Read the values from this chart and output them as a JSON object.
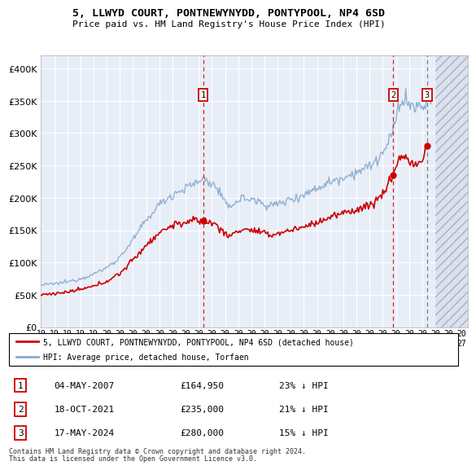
{
  "title1": "5, LLWYD COURT, PONTNEWYNYDD, PONTYPOOL, NP4 6SD",
  "title2": "Price paid vs. HM Land Registry's House Price Index (HPI)",
  "ylim": [
    0,
    420000
  ],
  "yticks": [
    0,
    50000,
    100000,
    150000,
    200000,
    250000,
    300000,
    350000,
    400000
  ],
  "ytick_labels": [
    "£0",
    "£50K",
    "£100K",
    "£150K",
    "£200K",
    "£250K",
    "£300K",
    "£350K",
    "£400K"
  ],
  "sale_dates": [
    "2007-05-04",
    "2021-10-18",
    "2024-05-17"
  ],
  "sale_prices": [
    164950,
    235000,
    280000
  ],
  "sale_labels": [
    "1",
    "2",
    "3"
  ],
  "sale_vline_colors": [
    "#cc0000",
    "#cc0000",
    "#666666"
  ],
  "sale_vline_styles": [
    "--",
    "--",
    "--"
  ],
  "sale_info": [
    {
      "num": "1",
      "date": "04-MAY-2007",
      "price": "£164,950",
      "hpi": "23% ↓ HPI"
    },
    {
      "num": "2",
      "date": "18-OCT-2021",
      "price": "£235,000",
      "hpi": "21% ↓ HPI"
    },
    {
      "num": "3",
      "date": "17-MAY-2024",
      "price": "£280,000",
      "hpi": "15% ↓ HPI"
    }
  ],
  "legend_line1": "5, LLWYD COURT, PONTNEWYNYDD, PONTYPOOL, NP4 6SD (detached house)",
  "legend_line2": "HPI: Average price, detached house, Torfaen",
  "footer1": "Contains HM Land Registry data © Crown copyright and database right 2024.",
  "footer2": "This data is licensed under the Open Government Licence v3.0.",
  "red_color": "#cc0000",
  "blue_color": "#88aacc",
  "bg_plot": "#e8eef8",
  "grid_color": "#ffffff",
  "hatch_start_year": 2025,
  "xlim_years": [
    1995,
    2027
  ],
  "xtick_years": [
    1995,
    1996,
    1997,
    1998,
    1999,
    2000,
    2001,
    2002,
    2003,
    2004,
    2005,
    2006,
    2007,
    2008,
    2009,
    2010,
    2011,
    2012,
    2013,
    2014,
    2015,
    2016,
    2017,
    2018,
    2019,
    2020,
    2021,
    2022,
    2023,
    2024,
    2025,
    2026,
    2027
  ]
}
